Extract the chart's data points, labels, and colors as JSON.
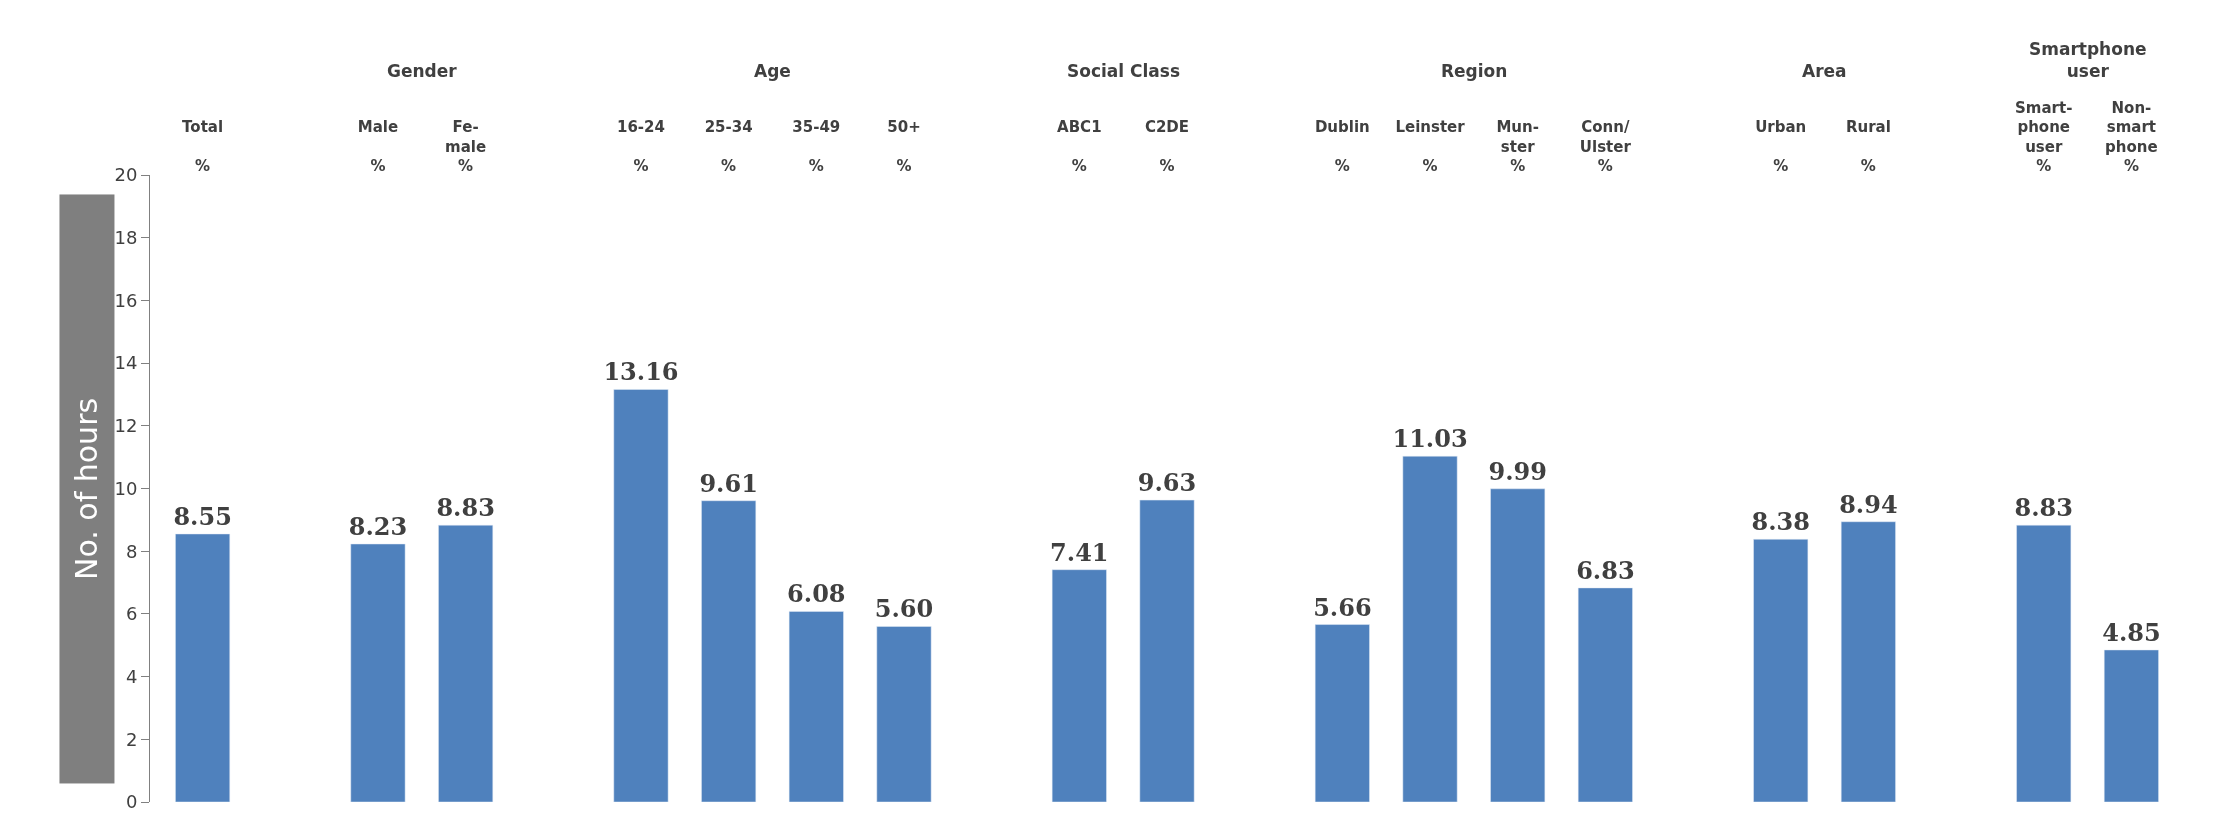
{
  "chart_data": {
    "type": "bar",
    "ylabel": "No. of hours",
    "categories": [
      "Total\n\n%",
      null,
      "Male\n\n%",
      "Fe-\nmale\n%",
      null,
      "16-24\n\n%",
      "25-34\n\n%",
      "35-49\n\n%",
      "50+\n\n%",
      null,
      "ABC1\n\n%",
      "C2DE\n\n%",
      null,
      "Dublin\n\n%",
      "Leinster\n\n%",
      "Mun-\nster\n%",
      "Conn/\nUlster\n%",
      null,
      "Urban\n\n%",
      "Rural\n\n%",
      null,
      "Smart-\nphone\nuser\n%",
      "Non-\nsmart\nphone\n%"
    ],
    "values": [
      8.55,
      null,
      8.23,
      8.83,
      null,
      13.16,
      9.61,
      6.08,
      5.6,
      null,
      7.41,
      9.63,
      null,
      5.66,
      11.03,
      9.99,
      6.83,
      null,
      8.38,
      8.94,
      null,
      8.83,
      4.85
    ],
    "value_labels": [
      "8.55",
      null,
      "8.23",
      "8.83",
      null,
      "13.16",
      "9.61",
      "6.08",
      "5.60",
      null,
      "7.41",
      "9.63",
      null,
      "5.66",
      "11.03",
      "9.99",
      "6.83",
      null,
      "8.38",
      "8.94",
      null,
      "8.83",
      "4.85"
    ],
    "color": "#4f81bd",
    "annotations": [
      "Gender",
      "Age",
      "Social Class",
      "Region",
      "Area",
      "Smartphone\nuser"
    ],
    "ylim": [
      0,
      20
    ],
    "yticks": [
      0,
      2,
      4,
      6,
      8,
      10,
      12,
      14,
      16,
      18,
      20
    ]
  }
}
